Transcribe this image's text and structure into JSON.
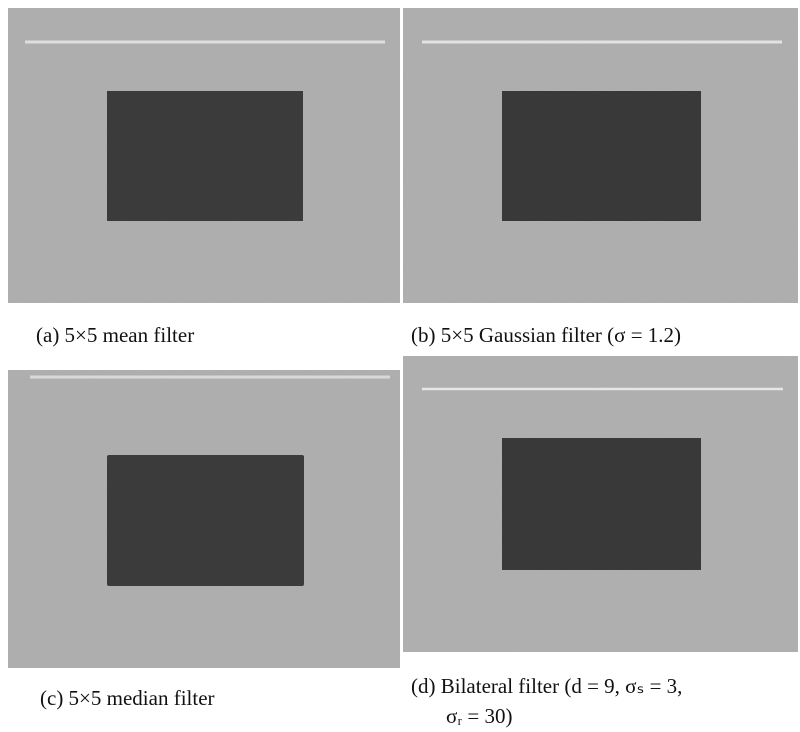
{
  "figure": {
    "panels": [
      {
        "caption": [
          "(a) 5×5 mean filter"
        ]
      },
      {
        "caption": [
          "(b) 5×5 Gaussian filter (σ = 1.2)"
        ]
      },
      {
        "caption": [
          "(c) 5×5 median filter"
        ]
      },
      {
        "caption": [
          "(d) Bilateral filter (d = 9, σₛ = 3,",
          "σᵣ = 30)"
        ]
      }
    ]
  }
}
